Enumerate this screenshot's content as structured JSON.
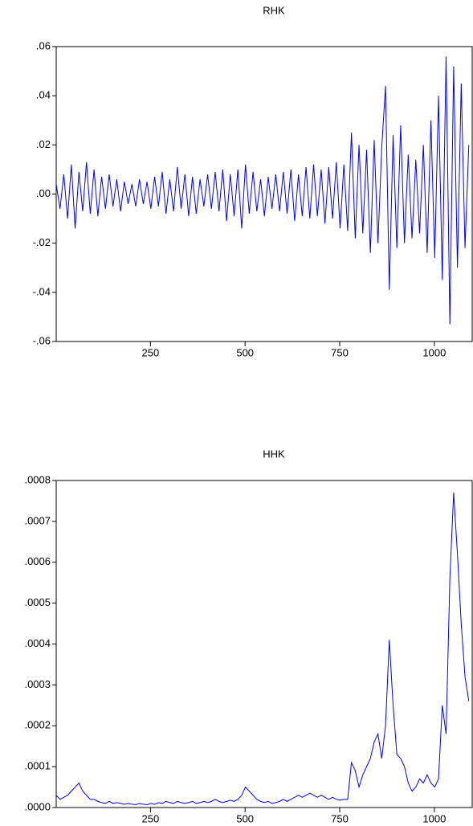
{
  "chart_data": [
    {
      "type": "line",
      "title": "RHK",
      "color": "#0000ff",
      "x": [
        1,
        11,
        21,
        31,
        41,
        51,
        61,
        71,
        81,
        91,
        101,
        111,
        121,
        131,
        141,
        151,
        161,
        171,
        181,
        191,
        201,
        211,
        221,
        231,
        241,
        251,
        261,
        271,
        281,
        291,
        301,
        311,
        321,
        331,
        341,
        351,
        361,
        371,
        381,
        391,
        401,
        411,
        421,
        431,
        441,
        451,
        461,
        471,
        481,
        491,
        501,
        511,
        521,
        531,
        541,
        551,
        561,
        571,
        581,
        591,
        601,
        611,
        621,
        631,
        641,
        651,
        661,
        671,
        681,
        691,
        701,
        711,
        721,
        731,
        741,
        751,
        761,
        771,
        781,
        791,
        801,
        811,
        821,
        831,
        841,
        851,
        861,
        871,
        881,
        891,
        901,
        911,
        921,
        931,
        941,
        951,
        961,
        971,
        981,
        991,
        1001,
        1011,
        1021,
        1031,
        1041,
        1051,
        1061,
        1071,
        1081,
        1091
      ],
      "values": [
        0.004,
        -0.006,
        0.008,
        -0.01,
        0.012,
        -0.014,
        0.009,
        -0.007,
        0.013,
        -0.008,
        0.01,
        -0.009,
        0.007,
        -0.006,
        0.008,
        -0.005,
        0.006,
        -0.007,
        0.005,
        -0.004,
        0.004,
        -0.005,
        0.006,
        -0.004,
        0.005,
        -0.006,
        0.007,
        -0.005,
        0.009,
        -0.008,
        0.006,
        -0.007,
        0.011,
        -0.006,
        0.008,
        -0.009,
        0.007,
        -0.008,
        0.006,
        -0.005,
        0.008,
        -0.006,
        0.009,
        -0.007,
        0.01,
        -0.011,
        0.008,
        -0.009,
        0.01,
        -0.014,
        0.012,
        -0.008,
        0.009,
        -0.007,
        0.006,
        -0.009,
        0.007,
        -0.006,
        0.008,
        -0.007,
        0.009,
        -0.008,
        0.01,
        -0.011,
        0.008,
        -0.009,
        0.011,
        -0.01,
        0.012,
        -0.009,
        0.01,
        -0.012,
        0.011,
        -0.01,
        0.013,
        -0.014,
        0.012,
        -0.015,
        0.025,
        -0.018,
        0.02,
        -0.016,
        0.018,
        -0.024,
        0.022,
        -0.02,
        0.019,
        0.044,
        -0.039,
        0.024,
        -0.022,
        0.028,
        -0.02,
        0.016,
        -0.018,
        0.014,
        -0.016,
        0.02,
        -0.024,
        0.03,
        -0.026,
        0.04,
        -0.035,
        0.056,
        -0.053,
        0.052,
        -0.03,
        0.045,
        -0.022,
        0.02
      ],
      "xlim": [
        1,
        1100
      ],
      "xticks": [
        250,
        500,
        750,
        1000
      ],
      "ylim": [
        -0.06,
        0.06
      ],
      "yticks": [
        {
          "value": -0.06,
          "label": "-.06"
        },
        {
          "value": -0.04,
          "label": "-.04"
        },
        {
          "value": -0.02,
          "label": "-.02"
        },
        {
          "value": 0,
          "label": ".00"
        },
        {
          "value": 0.02,
          "label": ".02"
        },
        {
          "value": 0.04,
          "label": ".04"
        },
        {
          "value": 0.06,
          "label": ".06"
        }
      ]
    },
    {
      "type": "line",
      "title": "HHK",
      "color": "#0000ff",
      "x": [
        1,
        11,
        21,
        31,
        41,
        51,
        61,
        71,
        81,
        91,
        101,
        111,
        121,
        131,
        141,
        151,
        161,
        171,
        181,
        191,
        201,
        211,
        221,
        231,
        241,
        251,
        261,
        271,
        281,
        291,
        301,
        311,
        321,
        331,
        341,
        351,
        361,
        371,
        381,
        391,
        401,
        411,
        421,
        431,
        441,
        451,
        461,
        471,
        481,
        491,
        501,
        511,
        521,
        531,
        541,
        551,
        561,
        571,
        581,
        591,
        601,
        611,
        621,
        631,
        641,
        651,
        661,
        671,
        681,
        691,
        701,
        711,
        721,
        731,
        741,
        751,
        761,
        771,
        781,
        791,
        801,
        811,
        821,
        831,
        841,
        851,
        861,
        871,
        881,
        891,
        901,
        911,
        921,
        931,
        941,
        951,
        961,
        971,
        981,
        991,
        1001,
        1011,
        1021,
        1031,
        1041,
        1051,
        1061,
        1071,
        1081,
        1091
      ],
      "values": [
        3e-05,
        2e-05,
        2.5e-05,
        3e-05,
        4e-05,
        5e-05,
        6e-05,
        4e-05,
        3e-05,
        2e-05,
        2e-05,
        1.5e-05,
        1.2e-05,
        1e-05,
        1.5e-05,
        1e-05,
        1.2e-05,
        1e-05,
        8e-06,
        1e-05,
        8e-06,
        7e-06,
        1e-05,
        8e-06,
        7e-06,
        1e-05,
        8e-06,
        1.2e-05,
        1e-05,
        1.5e-05,
        1.2e-05,
        1e-05,
        1.5e-05,
        1.2e-05,
        1e-05,
        1.2e-05,
        1.5e-05,
        1e-05,
        1.2e-05,
        1.5e-05,
        1.2e-05,
        1.5e-05,
        2e-05,
        1.5e-05,
        1.2e-05,
        1.5e-05,
        1.8e-05,
        1.5e-05,
        2e-05,
        3e-05,
        5e-05,
        4e-05,
        3e-05,
        2e-05,
        1.5e-05,
        1.2e-05,
        1.5e-05,
        1e-05,
        1.2e-05,
        1.5e-05,
        2e-05,
        1.5e-05,
        2e-05,
        2.5e-05,
        3e-05,
        2.5e-05,
        3e-05,
        3.5e-05,
        3e-05,
        2.5e-05,
        3e-05,
        2.5e-05,
        2e-05,
        2.5e-05,
        2e-05,
        1.8e-05,
        2e-05,
        2e-05,
        0.00011,
        9e-05,
        5e-05,
        8e-05,
        0.0001,
        0.00012,
        0.00016,
        0.00018,
        0.00012,
        0.0002,
        0.00041,
        0.00025,
        0.00013,
        0.00012,
        0.0001,
        6e-05,
        4e-05,
        5e-05,
        7e-05,
        6e-05,
        8e-05,
        6e-05,
        5e-05,
        7e-05,
        0.00025,
        0.00018,
        0.00056,
        0.00077,
        0.00062,
        0.00045,
        0.00032,
        0.00026
      ],
      "xlim": [
        1,
        1100
      ],
      "xticks": [
        250,
        500,
        750,
        1000
      ],
      "ylim": [
        0,
        0.0008
      ],
      "yticks": [
        {
          "value": 0,
          "label": ".0000"
        },
        {
          "value": 0.0001,
          "label": ".0001"
        },
        {
          "value": 0.0002,
          "label": ".0002"
        },
        {
          "value": 0.0003,
          "label": ".0003"
        },
        {
          "value": 0.0004,
          "label": ".0004"
        },
        {
          "value": 0.0005,
          "label": ".0005"
        },
        {
          "value": 0.0006,
          "label": ".0006"
        },
        {
          "value": 0.0007,
          "label": ".0007"
        },
        {
          "value": 0.0008,
          "label": ".0008"
        }
      ]
    }
  ]
}
